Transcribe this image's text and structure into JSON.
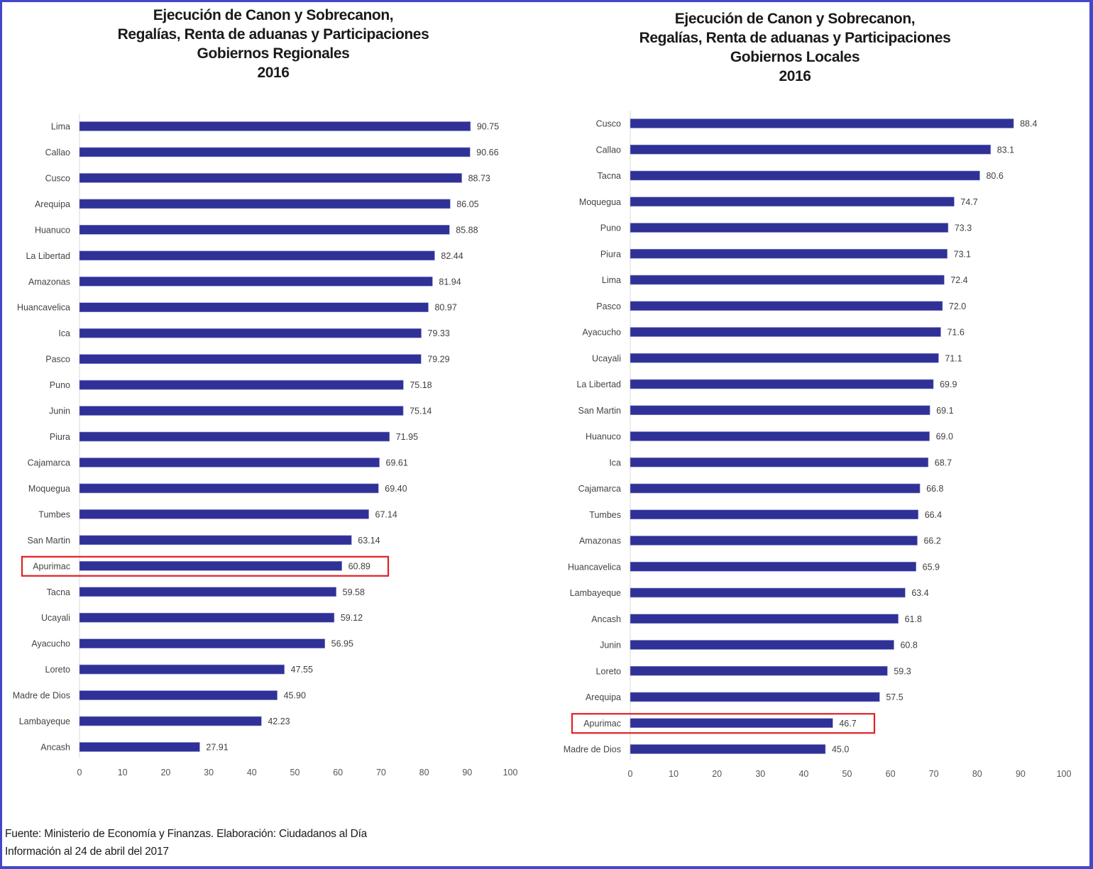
{
  "colors": {
    "bar": "#2f3197",
    "frame": "#4348c9",
    "highlight": "#e31e24",
    "axis": "#d9d9d9"
  },
  "footer": {
    "source": "Fuente: Ministerio de Economía y Finanzas. Elaboración: Ciudadanos al Día",
    "date": "Información al 24 de abril del 2017"
  },
  "chart_data": [
    {
      "type": "bar",
      "orientation": "horizontal",
      "title": "Ejecución de Canon y Sobrecanon, Regalías, Renta de aduanas y Participaciones Gobiernos Regionales 2016",
      "title_lines": [
        "Ejecución de Canon y Sobrecanon,",
        "Regalías, Renta de aduanas y Participaciones",
        "Gobiernos Regionales",
        "2016"
      ],
      "xlabel": "",
      "ylabel": "",
      "xlim": [
        0,
        100
      ],
      "xticks": [
        0,
        10,
        20,
        30,
        40,
        50,
        60,
        70,
        80,
        90,
        100
      ],
      "grid": false,
      "legend": "none",
      "highlight": "Apurimac",
      "categories": [
        "Lima",
        "Callao",
        "Cusco",
        "Arequipa",
        "Huanuco",
        "La Libertad",
        "Amazonas",
        "Huancavelica",
        "Ica",
        "Pasco",
        "Puno",
        "Junin",
        "Piura",
        "Cajamarca",
        "Moquegua",
        "Tumbes",
        "San Martin",
        "Apurimac",
        "Tacna",
        "Ucayali",
        "Ayacucho",
        "Loreto",
        "Madre de Dios",
        "Lambayeque",
        "Ancash"
      ],
      "values": [
        90.75,
        90.66,
        88.73,
        86.05,
        85.88,
        82.44,
        81.94,
        80.97,
        79.33,
        79.29,
        75.18,
        75.14,
        71.95,
        69.61,
        69.4,
        67.14,
        63.14,
        60.89,
        59.58,
        59.12,
        56.95,
        47.55,
        45.9,
        42.23,
        27.91
      ],
      "value_labels": [
        "90.75",
        "90.66",
        "88.73",
        "86.05",
        "85.88",
        "82.44",
        "81.94",
        "80.97",
        "79.33",
        "79.29",
        "75.18",
        "75.14",
        "71.95",
        "69.61",
        "69.40",
        "67.14",
        "63.14",
        "60.89",
        "59.58",
        "59.12",
        "56.95",
        "47.55",
        "45.90",
        "42.23",
        "27.91"
      ]
    },
    {
      "type": "bar",
      "orientation": "horizontal",
      "title": "Ejecución de Canon y Sobrecanon, Regalías, Renta de aduanas y Participaciones Gobiernos Locales 2016",
      "title_lines": [
        "Ejecución de Canon y Sobrecanon,",
        "Regalías, Renta de aduanas y Participaciones",
        "Gobiernos Locales",
        "2016"
      ],
      "xlabel": "",
      "ylabel": "",
      "xlim": [
        0,
        100
      ],
      "xticks": [
        0,
        10,
        20,
        30,
        40,
        50,
        60,
        70,
        80,
        90,
        100
      ],
      "grid": false,
      "legend": "none",
      "highlight": "Apurimac",
      "categories": [
        "Cusco",
        "Callao",
        "Tacna",
        "Moquegua",
        "Puno",
        "Piura",
        "Lima",
        "Pasco",
        "Ayacucho",
        "Ucayali",
        "La Libertad",
        "San Martin",
        "Huanuco",
        "Ica",
        "Cajamarca",
        "Tumbes",
        "Amazonas",
        "Huancavelica",
        "Lambayeque",
        "Ancash",
        "Junin",
        "Loreto",
        "Arequipa",
        "Apurimac",
        "Madre de Dios"
      ],
      "values": [
        88.4,
        83.1,
        80.6,
        74.7,
        73.3,
        73.1,
        72.4,
        72.0,
        71.6,
        71.1,
        69.9,
        69.1,
        69.0,
        68.7,
        66.8,
        66.4,
        66.2,
        65.9,
        63.4,
        61.8,
        60.8,
        59.3,
        57.5,
        46.7,
        45.0
      ],
      "value_labels": [
        "88.4",
        "83.1",
        "80.6",
        "74.7",
        "73.3",
        "73.1",
        "72.4",
        "72.0",
        "71.6",
        "71.1",
        "69.9",
        "69.1",
        "69.0",
        "68.7",
        "66.8",
        "66.4",
        "66.2",
        "65.9",
        "63.4",
        "61.8",
        "60.8",
        "59.3",
        "57.5",
        "46.7",
        "45.0"
      ]
    }
  ]
}
